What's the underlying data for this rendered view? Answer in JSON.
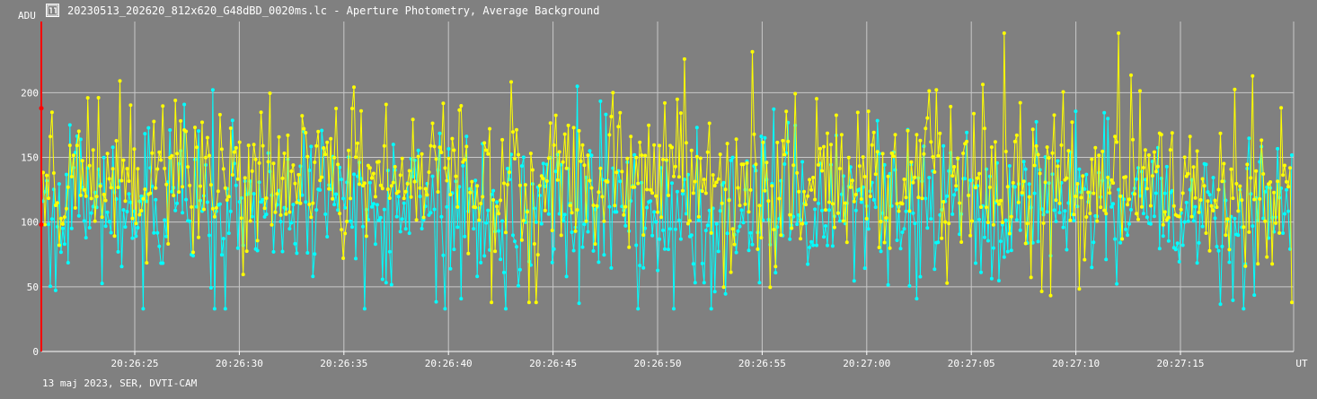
{
  "window": {
    "title": "20230513_202620_812x620_G48dBD_0020ms.lc - Aperture Photometry, Average Background",
    "icon": "lightcurve-app-icon"
  },
  "footer": {
    "caption": "13 maj 2023, SER, DVTI-CAM"
  },
  "colors": {
    "background": "#808080",
    "grid": "#c8c8c8",
    "series_cyan": "#00ffff",
    "series_yellow": "#ffff00",
    "cursor": "#ff0000"
  },
  "chart_data": {
    "type": "line",
    "title": "",
    "ylabel": "ADU",
    "xlabel": "UT",
    "ylim": [
      0,
      255
    ],
    "y_ticks": [
      0,
      50,
      100,
      150,
      200
    ],
    "x_ticks": [
      "20:26:25",
      "20:26:30",
      "20:26:35",
      "20:26:40",
      "20:26:45",
      "20:26:50",
      "20:26:55",
      "20:27:00",
      "20:27:05",
      "20:27:10",
      "20:27:15"
    ],
    "grid": true,
    "series": [
      {
        "color": "#00ffff",
        "mean": 110,
        "min": 33,
        "max": 205
      },
      {
        "color": "#ffff00",
        "mean": 130,
        "min": 38,
        "max": 246
      }
    ]
  }
}
